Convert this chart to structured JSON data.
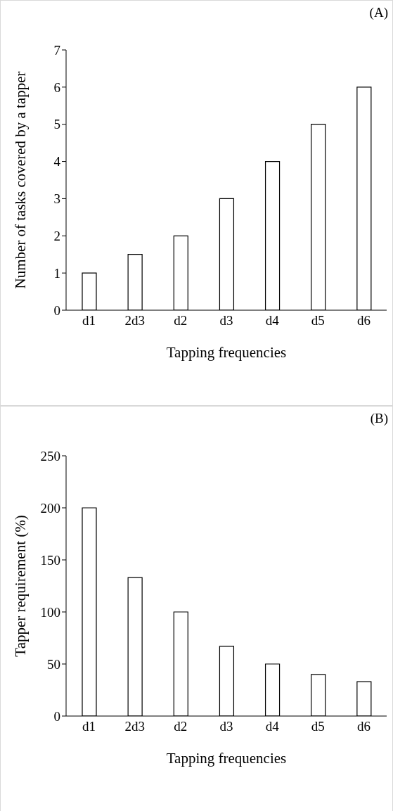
{
  "chart_data": [
    {
      "type": "bar",
      "categories": [
        "d1",
        "2d3",
        "d2",
        "d3",
        "d4",
        "d5",
        "d6"
      ],
      "values": [
        1,
        1.5,
        2,
        3,
        4,
        5,
        6
      ],
      "color": "#ffffff",
      "ylim": [
        0,
        7
      ],
      "yticks": [
        0,
        1,
        2,
        3,
        4,
        5,
        6,
        7
      ],
      "xlabel": "Tapping frequencies",
      "ylabel": "Number of tasks covered by a tapper",
      "annotations": [
        "(A)"
      ]
    },
    {
      "type": "bar",
      "categories": [
        "d1",
        "2d3",
        "d2",
        "d3",
        "d4",
        "d5",
        "d6"
      ],
      "values": [
        200,
        133,
        100,
        67,
        50,
        40,
        33
      ],
      "color": "#ffffff",
      "ylim": [
        0,
        250
      ],
      "yticks": [
        0,
        50,
        100,
        150,
        200,
        250
      ],
      "xlabel": "Tapping frequencies",
      "ylabel": "Tapper requirement (%)",
      "annotations": [
        "(B)"
      ]
    }
  ]
}
